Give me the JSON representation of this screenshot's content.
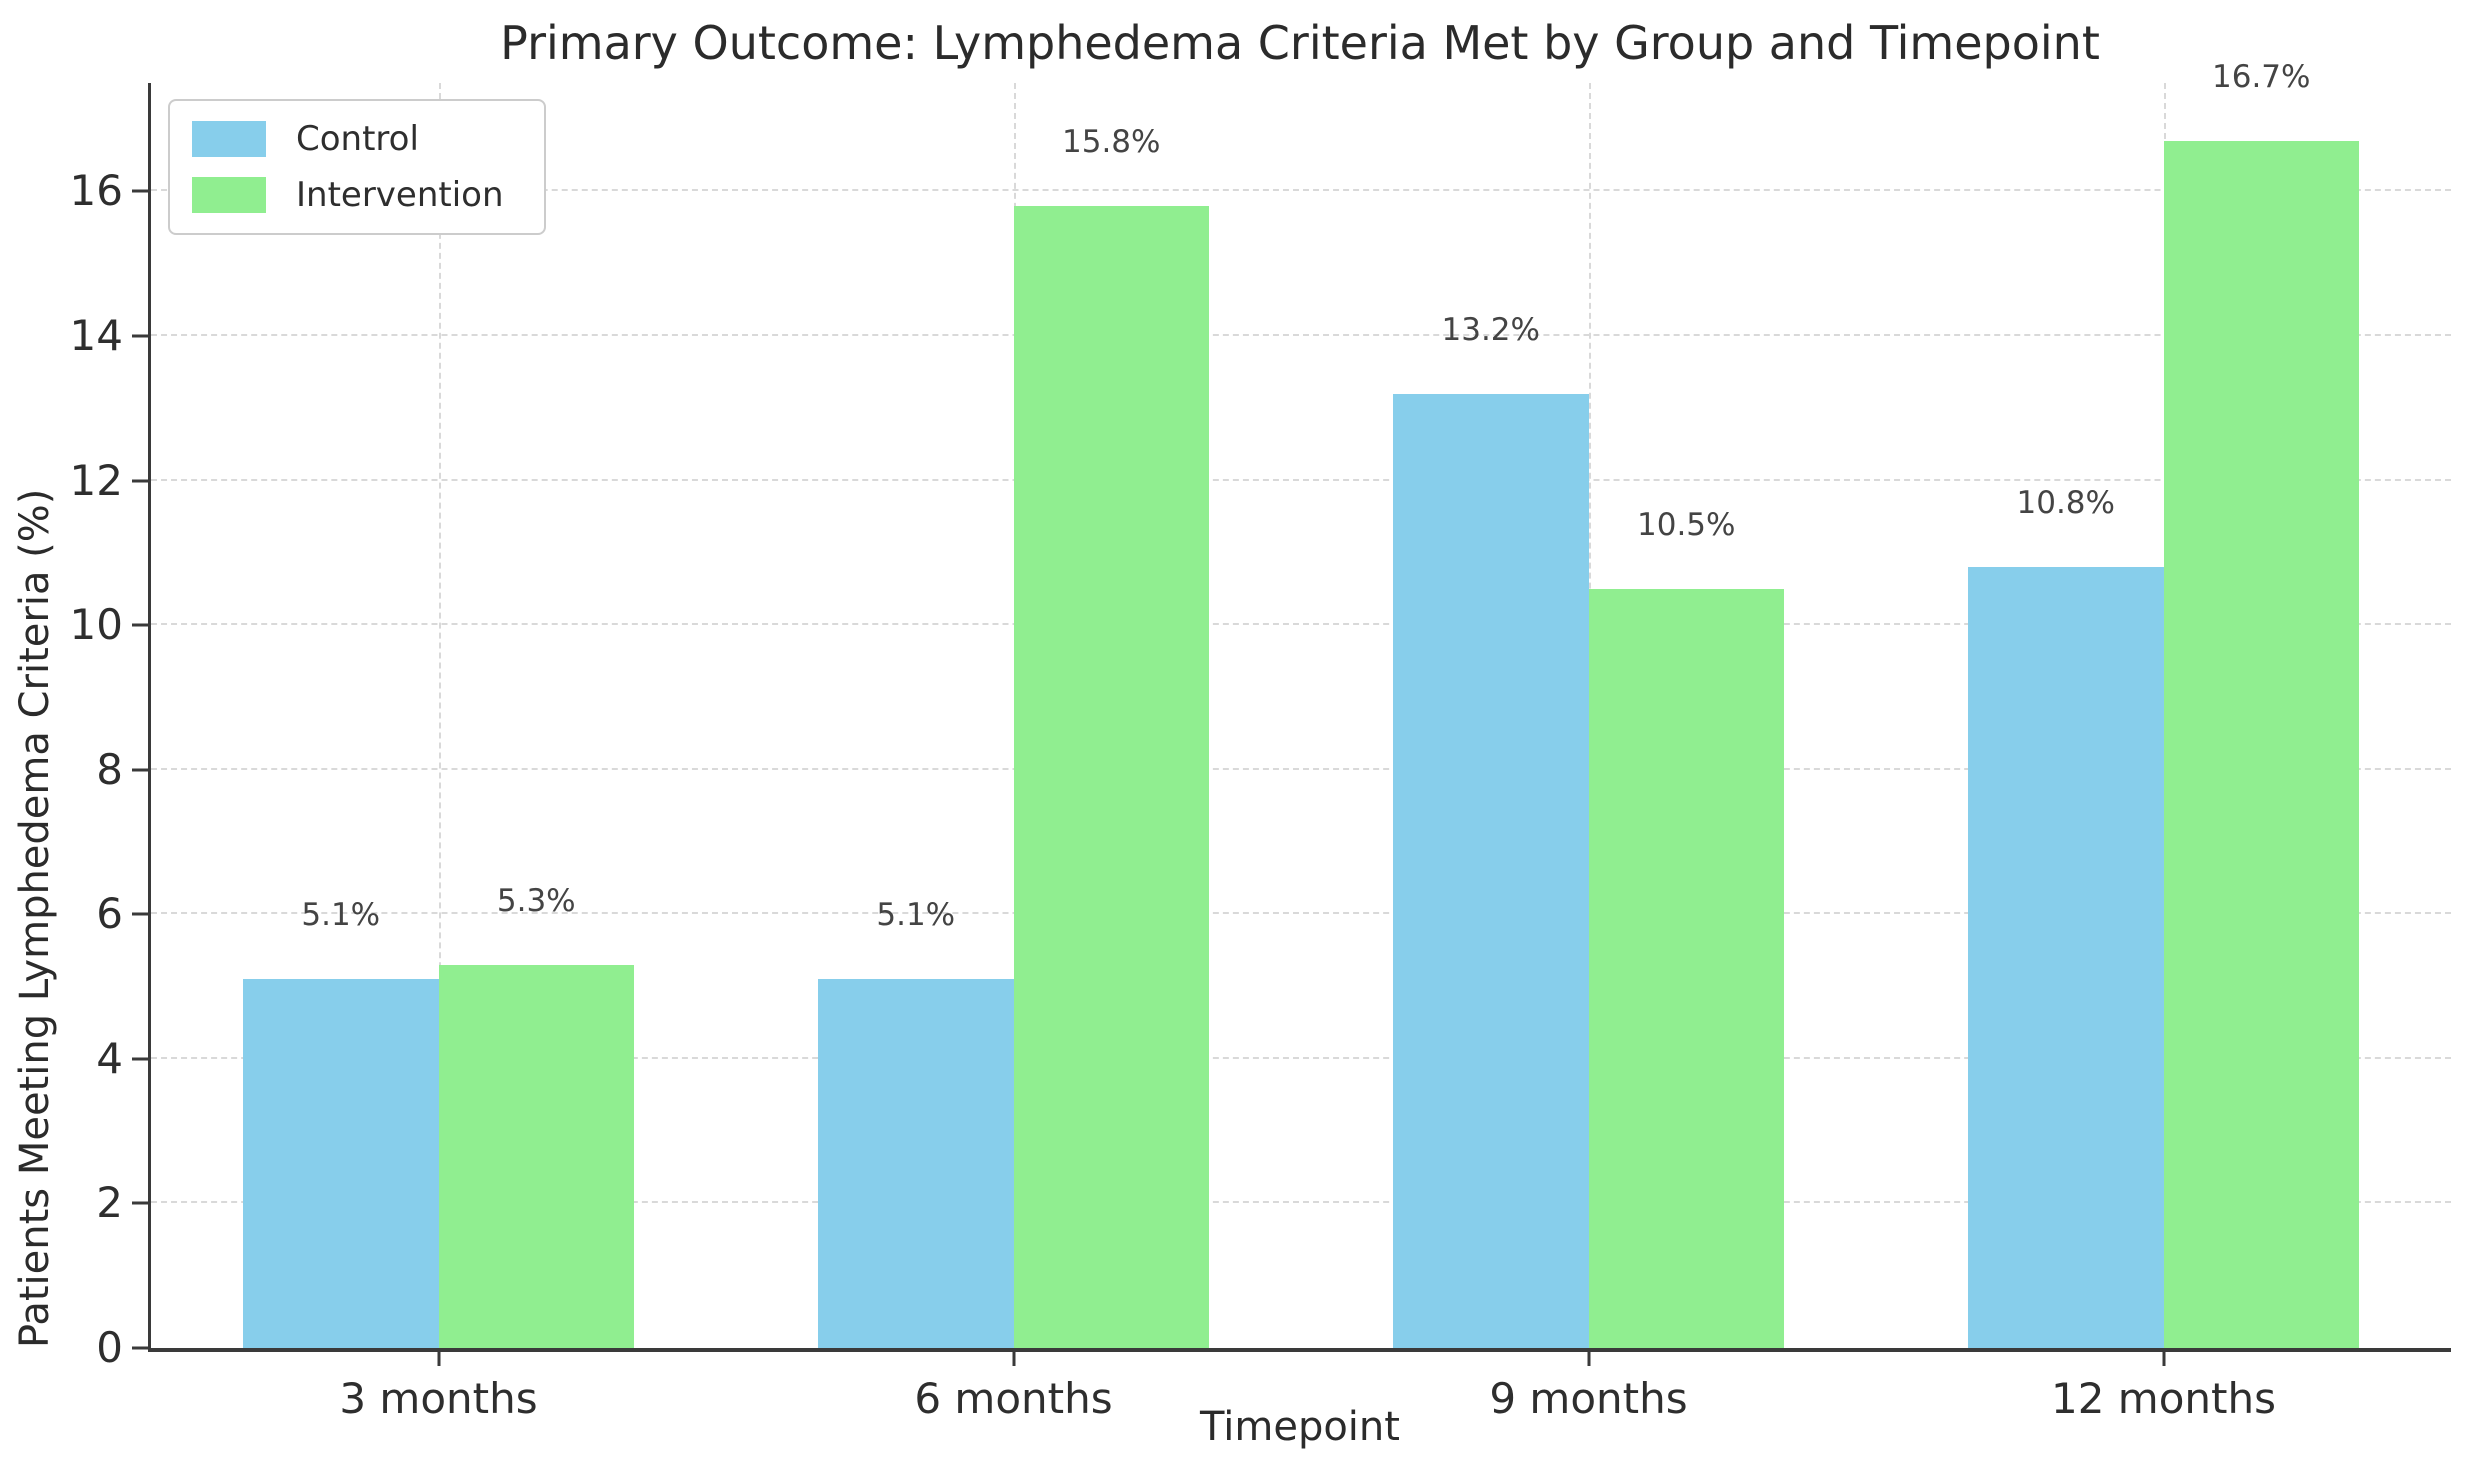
{
  "chart_data": {
    "type": "bar",
    "title": "Primary Outcome: Lymphedema Criteria Met by Group and Timepoint",
    "xlabel": "Timepoint",
    "ylabel": "Patients Meeting Lymphedema Criteria (%)",
    "categories": [
      "3 months",
      "6 months",
      "9 months",
      "12 months"
    ],
    "series": [
      {
        "name": "Control",
        "color": "#87CEEB",
        "values": [
          5.1,
          5.1,
          13.2,
          10.8
        ],
        "labels": [
          "5.1%",
          "5.1%",
          "13.2%",
          "10.8%"
        ]
      },
      {
        "name": "Intervention",
        "color": "#90EE90",
        "values": [
          5.3,
          15.8,
          10.5,
          16.7
        ],
        "labels": [
          "5.3%",
          "15.8%",
          "10.5%",
          "16.7%"
        ]
      }
    ],
    "ylim": [
      0,
      17.5
    ],
    "yticks": [
      0,
      2,
      4,
      6,
      8,
      10,
      12,
      14,
      16
    ],
    "grid": true,
    "legend_position": "upper left",
    "bar_width_pct": 8.5,
    "background": "#ffffff",
    "grid_color": "#d9d9d9",
    "axis_color": "#3a3a3a",
    "label_color": "#444444"
  }
}
